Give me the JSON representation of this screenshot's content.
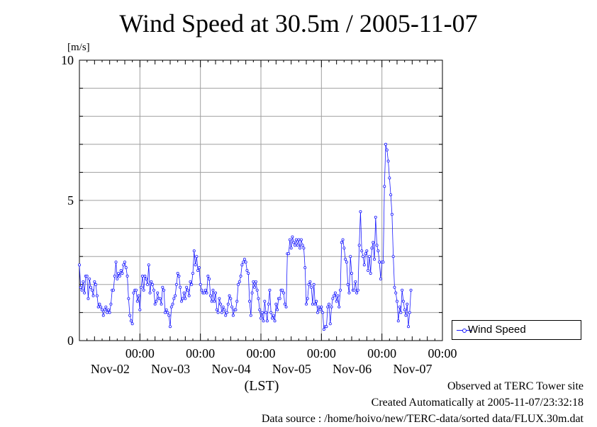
{
  "chart_data": {
    "type": "line",
    "title": "Wind Speed at 30.5m / 2005-11-07",
    "ylabel": "[m/s]",
    "xlabel": "(LST)",
    "ylim": [
      0,
      10
    ],
    "yticks": [
      0,
      5,
      10
    ],
    "x_tick_time_label": "00:00",
    "x_day_labels": [
      "Nov-02",
      "Nov-03",
      "Nov-04",
      "Nov-05",
      "Nov-06",
      "Nov-07"
    ],
    "x_range_hours": [
      0,
      144
    ],
    "grid": true,
    "legend_position": "bottom-right",
    "series": [
      {
        "name": "Wind Speed",
        "color": "#1a1aff",
        "interval_hours": 0.5,
        "start_hour": 0,
        "values": [
          2.7,
          1.9,
          1.8,
          2.1,
          1.7,
          2.3,
          2.3,
          1.5,
          2.2,
          1.9,
          1.8,
          1.6,
          2.1,
          2.0,
          1.6,
          1.2,
          1.3,
          1.2,
          1.1,
          0.9,
          1.1,
          1.2,
          1.0,
          1.1,
          1.0,
          1.3,
          1.8,
          1.8,
          2.3,
          2.8,
          2.2,
          2.4,
          2.3,
          2.5,
          2.4,
          2.7,
          2.8,
          2.6,
          2.3,
          1.5,
          0.9,
          0.7,
          0.6,
          1.7,
          1.8,
          1.8,
          1.4,
          1.6,
          1.1,
          1.9,
          2.3,
          1.8,
          2.3,
          2.2,
          2.0,
          2.7,
          1.7,
          2.1,
          2.0,
          1.8,
          1.3,
          1.4,
          1.7,
          1.5,
          1.5,
          1.3,
          1.9,
          1.8,
          1.0,
          1.1,
          1.0,
          0.9,
          0.5,
          1.2,
          1.3,
          1.5,
          1.6,
          2.0,
          2.4,
          2.3,
          1.9,
          1.4,
          1.5,
          1.7,
          1.5,
          1.9,
          1.8,
          1.6,
          2.1,
          2.0,
          2.4,
          3.2,
          2.7,
          3.0,
          2.5,
          2.6,
          2.0,
          1.8,
          1.7,
          1.7,
          1.8,
          1.7,
          2.3,
          2.2,
          1.6,
          1.4,
          1.8,
          1.4,
          1.7,
          1.1,
          1.0,
          1.5,
          1.3,
          1.0,
          1.2,
          1.1,
          0.9,
          1.0,
          1.3,
          1.6,
          1.5,
          1.2,
          0.9,
          1.1,
          1.1,
          1.4,
          2.0,
          2.1,
          2.3,
          2.7,
          2.8,
          2.9,
          2.8,
          2.5,
          2.4,
          1.4,
          0.9,
          1.7,
          2.1,
          1.9,
          2.1,
          1.8,
          1.5,
          1.1,
          0.8,
          1.0,
          0.7,
          1.4,
          1.0,
          0.7,
          1.3,
          1.8,
          1.0,
          0.8,
          0.9,
          0.7,
          1.3,
          1.1,
          1.5,
          1.5,
          1.8,
          1.8,
          1.7,
          1.3,
          1.2,
          3.1,
          3.1,
          3.6,
          3.3,
          3.7,
          3.5,
          3.4,
          3.6,
          3.4,
          3.6,
          3.3,
          3.6,
          3.4,
          3.3,
          2.6,
          1.3,
          1.5,
          2.0,
          2.1,
          1.9,
          1.3,
          2.0,
          1.3,
          1.4,
          1.0,
          1.2,
          1.1,
          1.2,
          1.0,
          0.4,
          0.5,
          0.5,
          1.2,
          1.3,
          0.6,
          1.2,
          1.5,
          1.6,
          1.7,
          1.4,
          1.6,
          1.2,
          1.8,
          3.5,
          3.6,
          3.3,
          2.9,
          2.8,
          2.0,
          1.7,
          3.0,
          2.4,
          1.8,
          1.8,
          2.1,
          1.7,
          1.8,
          3.4,
          4.6,
          3.2,
          3.0,
          2.7,
          3.1,
          3.2,
          2.5,
          3.0,
          2.4,
          3.3,
          3.5,
          2.9,
          4.4,
          3.4,
          3.2,
          2.8,
          2.2,
          2.8,
          2.8,
          5.5,
          7.0,
          6.8,
          6.4,
          5.8,
          5.2,
          4.5,
          3.0,
          1.9,
          1.7,
          1.4,
          0.7,
          1.2,
          1.0,
          1.8,
          1.4,
          1.1,
          0.9,
          1.3,
          0.5,
          1.0,
          1.8
        ]
      }
    ]
  },
  "footer": {
    "line1": "Observed at TERC Tower site",
    "line2": "Created Automatically at 2005-11-07/23:32:18",
    "line3": "Data source : /home/hoivo/new/TERC-data/sorted  data/FLUX.30m.dat"
  }
}
